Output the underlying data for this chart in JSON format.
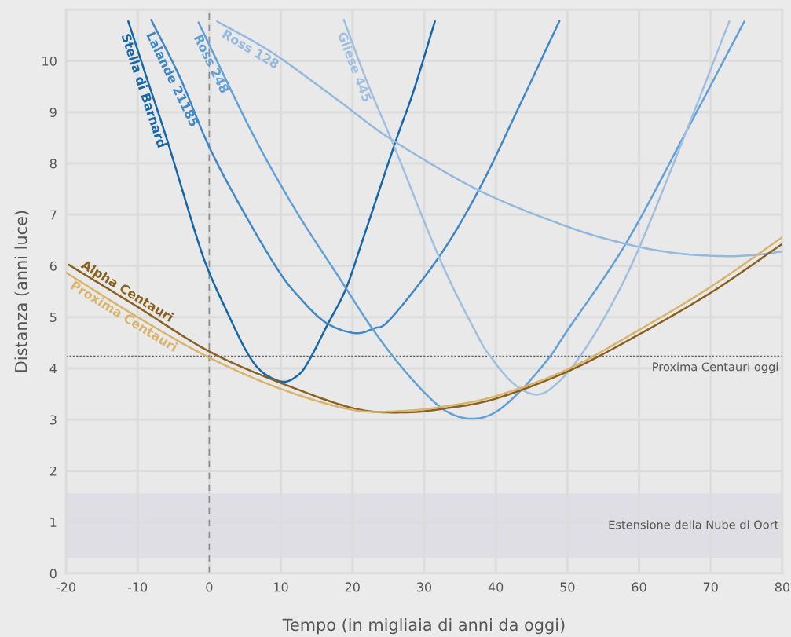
{
  "chart_data": {
    "type": "line",
    "xlabel": "Tempo (in migliaia di anni da oggi)",
    "ylabel": "Distanza (anni luce)",
    "xlim": [
      -20,
      80
    ],
    "ylim": [
      0,
      11
    ],
    "xticks": [
      -20,
      -10,
      0,
      10,
      20,
      30,
      40,
      50,
      60,
      70,
      80
    ],
    "yticks": [
      0,
      1,
      2,
      3,
      4,
      5,
      6,
      7,
      8,
      9,
      10
    ],
    "grid": true,
    "legend": false,
    "marker": "none",
    "line_style": "solid",
    "ref_lines": [
      {
        "axis": "x",
        "value": 0,
        "color": "#8c8c8c",
        "line_style": "dashed"
      },
      {
        "axis": "y",
        "value": 4.24,
        "label": "Proxima Centauri oggi",
        "color": "#666666",
        "line_style": "dotted"
      }
    ],
    "bands": [
      {
        "axis": "y",
        "from": 0.3,
        "to": 1.56,
        "label": "Estensione della Nube di Oort",
        "color": "#dedee4"
      }
    ],
    "series": [
      {
        "name": "Stella di Barnard",
        "color": "#1666a8",
        "x": [
          -11.3,
          -8.8,
          -5.8,
          -1.8,
          0,
          2.3,
          5.2,
          7.4,
          10.3,
          12.5,
          14,
          16.5,
          19.1,
          21.6,
          25.9,
          28.5,
          31.5
        ],
        "values": [
          10.77,
          9.7,
          8.42,
          6.58,
          5.87,
          5.16,
          4.33,
          3.93,
          3.74,
          3.88,
          4.17,
          4.85,
          5.56,
          6.58,
          8.38,
          9.4,
          10.77
        ]
      },
      {
        "name": "Lalande 21185",
        "color": "#3f88c5",
        "x": [
          -8.1,
          -4,
          0,
          4.8,
          9.6,
          12.5,
          16.2,
          20.2,
          23,
          25.4,
          32.2,
          37.7,
          43.3,
          48.9
        ],
        "values": [
          10.8,
          9.65,
          8.32,
          7.05,
          5.92,
          5.4,
          4.9,
          4.69,
          4.78,
          4.98,
          6.2,
          7.5,
          9.12,
          10.78
        ]
      },
      {
        "name": "Ross 248",
        "color": "#62a0d8",
        "x": [
          -1.5,
          5.9,
          12,
          18,
          22.7,
          27,
          31.2,
          34,
          37,
          40,
          43.5,
          47.4,
          50,
          58.1,
          66.7,
          74.7
        ],
        "values": [
          10.75,
          8.62,
          7.1,
          5.8,
          4.79,
          4.0,
          3.37,
          3.1,
          3.02,
          3.15,
          3.57,
          4.2,
          4.74,
          6.42,
          8.65,
          10.77
        ]
      },
      {
        "name": "Ross 128",
        "color": "#93b9dc",
        "x": [
          1.1,
          8.9,
          18,
          25.4,
          37.7,
          49.9,
          58.1,
          65,
          71.6,
          76,
          80
        ],
        "values": [
          10.77,
          10.15,
          9.23,
          8.47,
          7.47,
          6.77,
          6.43,
          6.25,
          6.19,
          6.21,
          6.28
        ]
      },
      {
        "name": "Gliese 445",
        "color": "#a0bfdf",
        "x": [
          18.8,
          22,
          25.7,
          32.2,
          37,
          39.2,
          42.5,
          45.7,
          48.5,
          51.8,
          56,
          60.1,
          66.7,
          72.6
        ],
        "values": [
          10.8,
          9.6,
          8.37,
          6.13,
          4.76,
          4.24,
          3.7,
          3.49,
          3.7,
          4.24,
          5.2,
          6.38,
          8.66,
          10.77
        ]
      },
      {
        "name": "Alpha Centauri",
        "color": "#8a6020",
        "x": [
          -19.6,
          -10,
          0,
          10.3,
          20.2,
          27,
          33,
          40,
          50.2,
          60.1,
          70.4,
          80
        ],
        "values": [
          6.02,
          5.2,
          4.33,
          3.7,
          3.22,
          3.14,
          3.22,
          3.41,
          3.95,
          4.67,
          5.51,
          6.43
        ]
      },
      {
        "name": "Proxima Centauri",
        "color": "#d8b46c",
        "x": [
          -20,
          -10,
          0,
          10,
          20,
          27,
          33,
          40,
          50,
          60,
          70,
          80
        ],
        "values": [
          5.87,
          5.0,
          4.21,
          3.6,
          3.19,
          3.17,
          3.26,
          3.46,
          3.98,
          4.75,
          5.59,
          6.56
        ]
      }
    ]
  }
}
